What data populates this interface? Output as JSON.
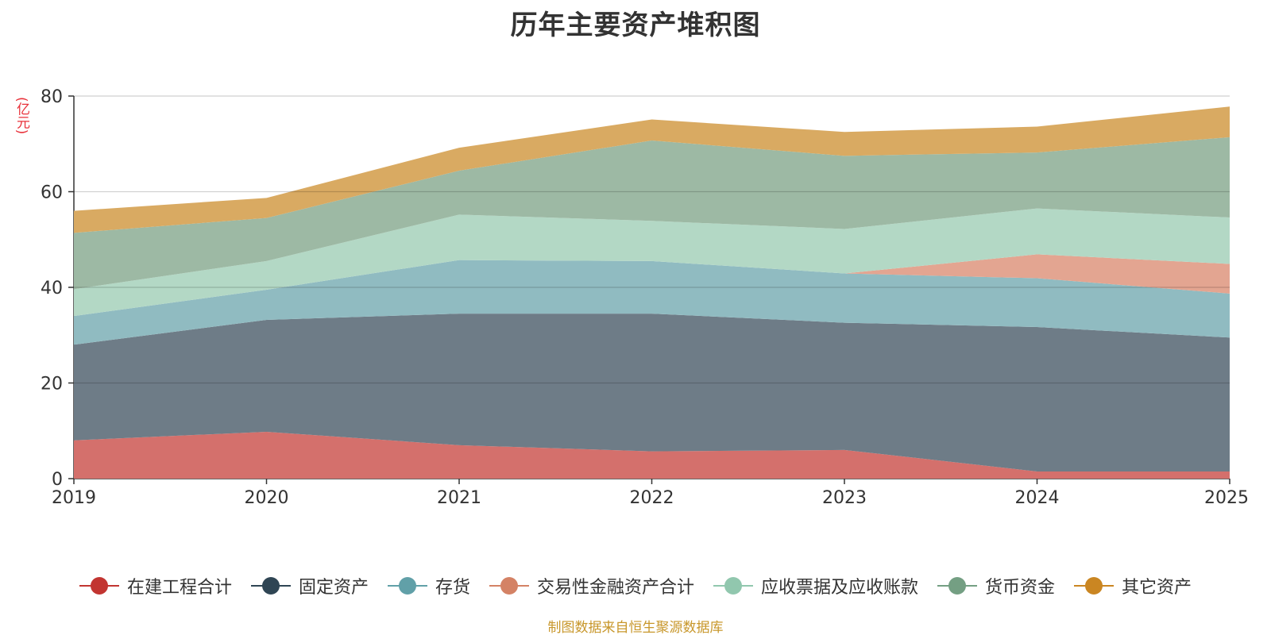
{
  "chart_data": {
    "type": "area",
    "stacked": true,
    "title": "历年主要资产堆积图",
    "ylabel": "(亿元)",
    "xlabel": "",
    "categories": [
      "2019",
      "2020",
      "2021",
      "2022",
      "2023",
      "2024",
      "2025"
    ],
    "ylim": [
      0,
      80
    ],
    "yticks": [
      "0",
      "20",
      "40",
      "60",
      "80"
    ],
    "grid": true,
    "legend_position": "bottom",
    "series": [
      {
        "name": "在建工程合计",
        "color": "#c23531",
        "fill": "#d4706c",
        "values": [
          8.0,
          9.8,
          7.0,
          5.7,
          6.0,
          1.5,
          1.5
        ]
      },
      {
        "name": "固定资产",
        "color": "#2f4554",
        "fill": "#6e7c87",
        "values": [
          20.0,
          23.4,
          27.5,
          28.8,
          26.6,
          30.2,
          28.0
        ]
      },
      {
        "name": "存货",
        "color": "#61a0a8",
        "fill": "#90bbc1",
        "values": [
          6.0,
          6.3,
          11.2,
          11.0,
          10.3,
          10.2,
          9.2
        ]
      },
      {
        "name": "交易性金融资产合计",
        "color": "#d48265",
        "fill": "#e3a591",
        "values": [
          0.0,
          0.0,
          0.0,
          0.0,
          0.0,
          5.0,
          6.2
        ]
      },
      {
        "name": "应收票据及应收账款",
        "color": "#91c7ae",
        "fill": "#b3d8c5",
        "values": [
          5.6,
          6.0,
          9.5,
          8.4,
          9.3,
          9.6,
          9.7
        ]
      },
      {
        "name": "货币资金",
        "color": "#749f83",
        "fill": "#9db9a4",
        "values": [
          11.8,
          9.0,
          9.2,
          16.8,
          15.3,
          11.7,
          16.8
        ]
      },
      {
        "name": "其它资产",
        "color": "#ca8622",
        "fill": "#d9aa62",
        "values": [
          4.6,
          4.2,
          4.8,
          4.4,
          5.0,
          5.4,
          6.4
        ]
      }
    ]
  },
  "source_note": "制图数据来自恒生聚源数据库"
}
